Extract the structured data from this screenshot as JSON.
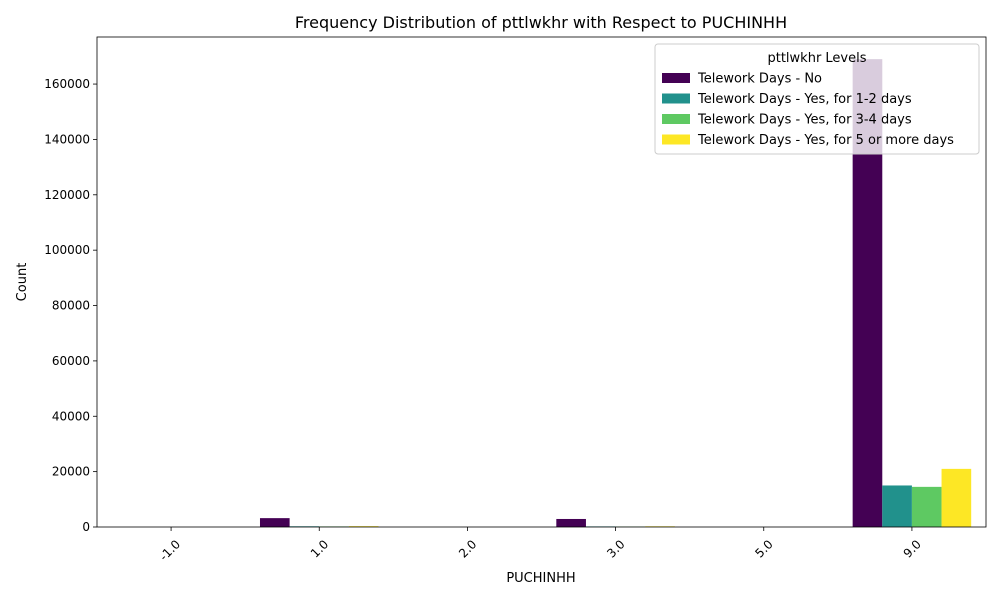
{
  "chart_data": {
    "type": "bar",
    "title": "Frequency Distribution of pttlwkhr with Respect to PUCHINHH",
    "xlabel": "PUCHINHH",
    "ylabel": "Count",
    "categories": [
      "-1.0",
      "1.0",
      "2.0",
      "3.0",
      "5.0",
      "9.0"
    ],
    "ylim": [
      0,
      177000
    ],
    "yticks": [
      0,
      20000,
      40000,
      60000,
      80000,
      100000,
      120000,
      140000,
      160000
    ],
    "legend_title": "pttlwkhr Levels",
    "legend_position": "top-right",
    "grid": false,
    "series": [
      {
        "name": "Telework Days - No",
        "color": "#440154",
        "values": [
          0,
          3200,
          0,
          2900,
          0,
          169000
        ]
      },
      {
        "name": "Telework Days - Yes, for 1-2 days",
        "color": "#21918c",
        "values": [
          0,
          250,
          0,
          200,
          0,
          15000
        ]
      },
      {
        "name": "Telework Days - Yes, for 3-4 days",
        "color": "#5ec962",
        "values": [
          0,
          200,
          0,
          150,
          0,
          14500
        ]
      },
      {
        "name": "Telework Days - Yes, for 5 or more days",
        "color": "#fde725",
        "values": [
          0,
          300,
          0,
          250,
          0,
          21000
        ]
      }
    ]
  }
}
